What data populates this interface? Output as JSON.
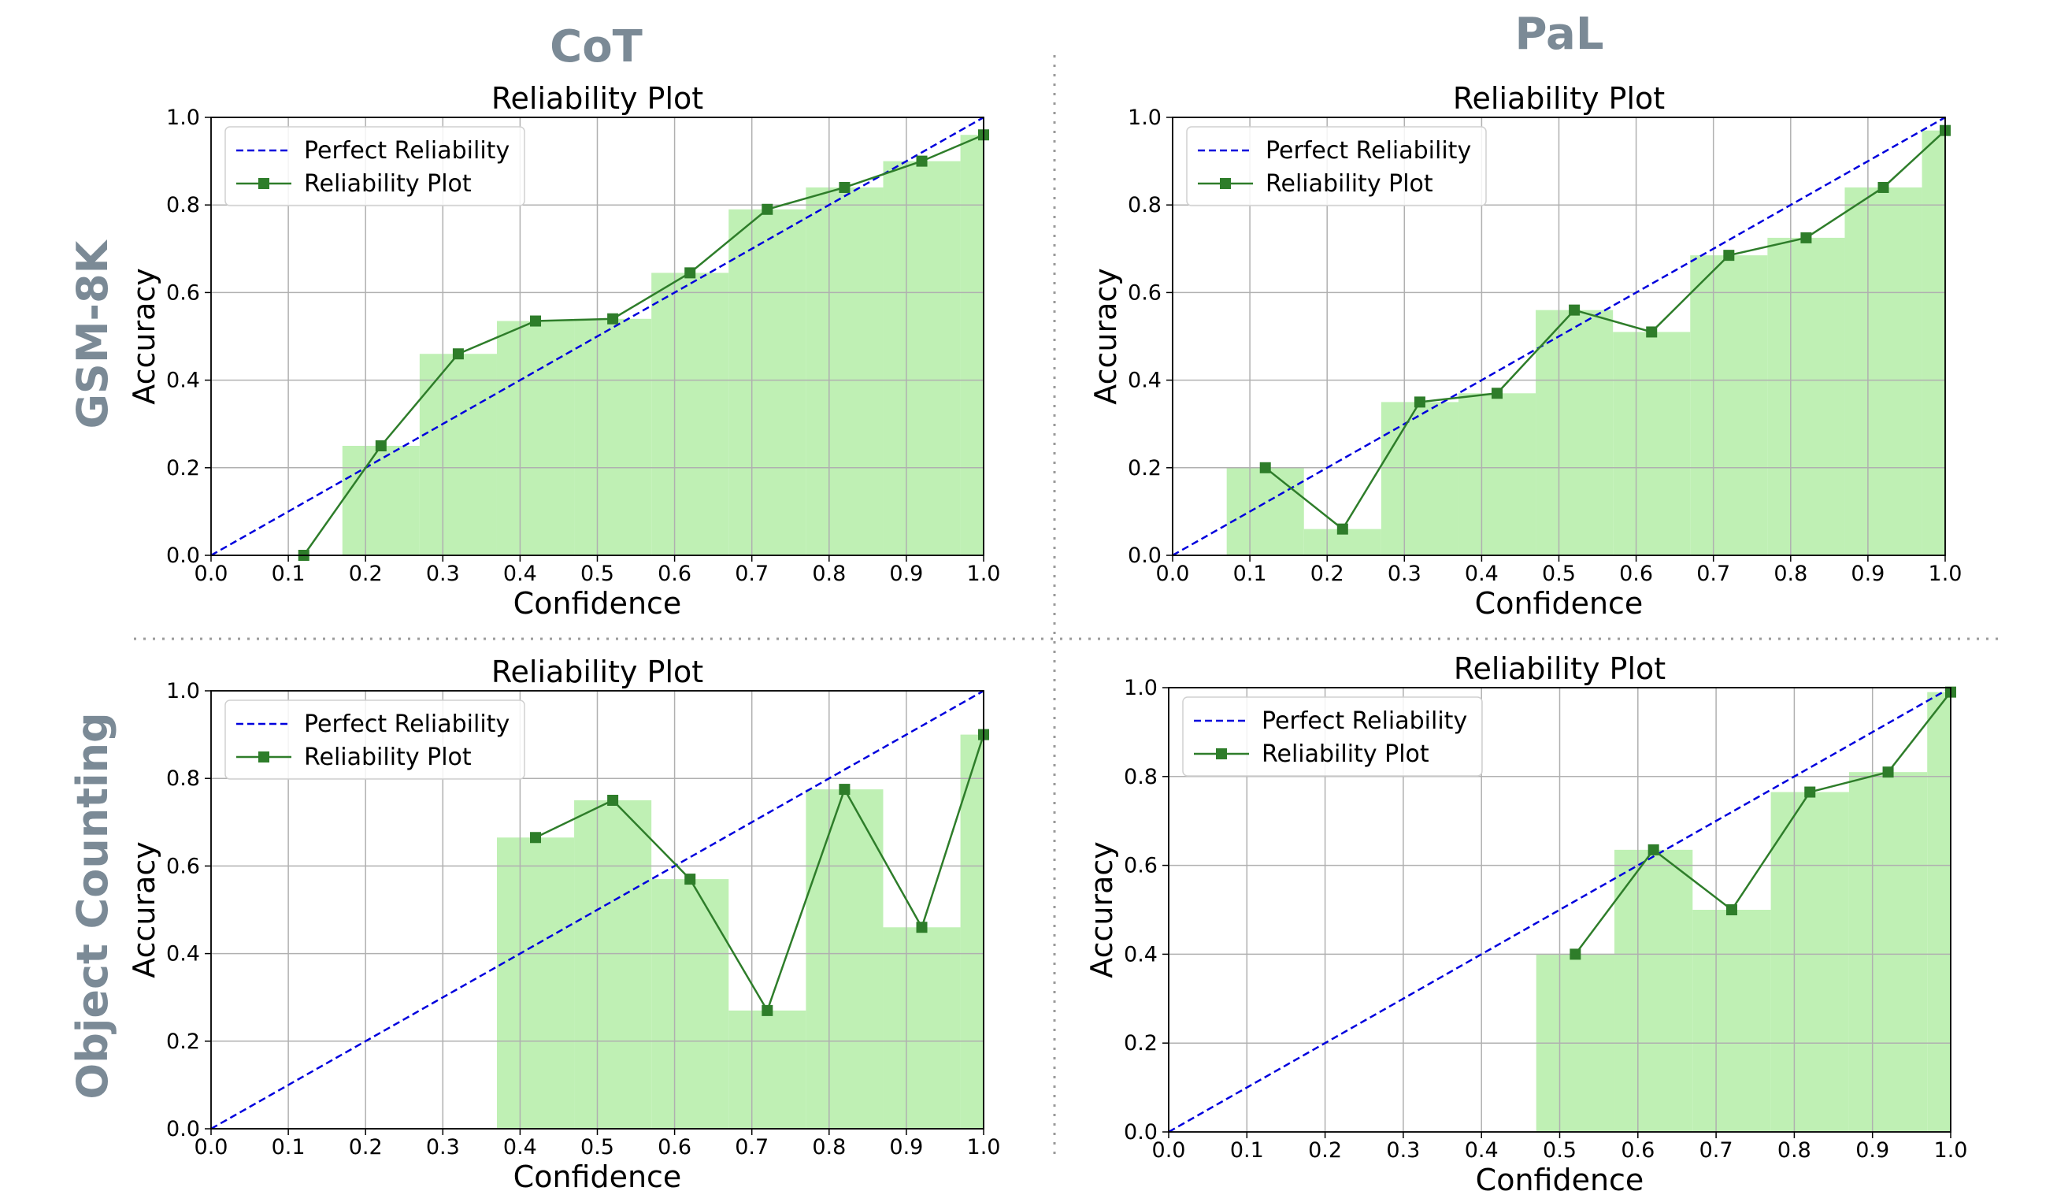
{
  "columns": [
    "CoT",
    "PaL"
  ],
  "rows": [
    "GSM-8K",
    "Object Counting"
  ],
  "colors": {
    "bar": "#bff0b4",
    "line": "#2e7d2a",
    "perfect": "#0000dd",
    "grid": "#b0b0b0",
    "header": "#7b8a96"
  },
  "chart_data": [
    {
      "type": "line",
      "panel": "CoT / GSM-8K",
      "title": "Reliability Plot",
      "xlabel": "Confidence",
      "ylabel": "Accuracy",
      "xlim": [
        0,
        1
      ],
      "ylim": [
        0,
        1
      ],
      "xticks": [
        "0.0",
        "0.1",
        "0.2",
        "0.3",
        "0.4",
        "0.5",
        "0.6",
        "0.7",
        "0.8",
        "0.9",
        "1.0"
      ],
      "yticks": [
        "0.0",
        "0.2",
        "0.4",
        "0.6",
        "0.8",
        "1.0"
      ],
      "grid": true,
      "legend": "top-left",
      "legend_entries": [
        "Perfect Reliability",
        "Reliability Plot"
      ],
      "bars": [
        {
          "x0": 0.17,
          "x1": 0.27,
          "y": 0.25
        },
        {
          "x0": 0.27,
          "x1": 0.37,
          "y": 0.46
        },
        {
          "x0": 0.37,
          "x1": 0.47,
          "y": 0.535
        },
        {
          "x0": 0.47,
          "x1": 0.57,
          "y": 0.54
        },
        {
          "x0": 0.57,
          "x1": 0.67,
          "y": 0.645
        },
        {
          "x0": 0.67,
          "x1": 0.77,
          "y": 0.79
        },
        {
          "x0": 0.77,
          "x1": 0.87,
          "y": 0.84
        },
        {
          "x0": 0.87,
          "x1": 0.97,
          "y": 0.9
        },
        {
          "x0": 0.97,
          "x1": 1.0,
          "y": 0.96
        }
      ],
      "series": [
        {
          "name": "Reliability Plot",
          "x": [
            0.12,
            0.22,
            0.32,
            0.42,
            0.52,
            0.62,
            0.72,
            0.82,
            0.92,
            1.0
          ],
          "y": [
            0.0,
            0.25,
            0.46,
            0.535,
            0.54,
            0.645,
            0.79,
            0.84,
            0.9,
            0.96
          ]
        }
      ]
    },
    {
      "type": "line",
      "panel": "PaL / GSM-8K",
      "title": "Reliability Plot",
      "xlabel": "Confidence",
      "ylabel": "Accuracy",
      "xlim": [
        0,
        1
      ],
      "ylim": [
        0,
        1
      ],
      "xticks": [
        "0.0",
        "0.1",
        "0.2",
        "0.3",
        "0.4",
        "0.5",
        "0.6",
        "0.7",
        "0.8",
        "0.9",
        "1.0"
      ],
      "yticks": [
        "0.0",
        "0.2",
        "0.4",
        "0.6",
        "0.8",
        "1.0"
      ],
      "grid": true,
      "legend": "top-left",
      "legend_entries": [
        "Perfect Reliability",
        "Reliability Plot"
      ],
      "bars": [
        {
          "x0": 0.07,
          "x1": 0.17,
          "y": 0.2
        },
        {
          "x0": 0.17,
          "x1": 0.27,
          "y": 0.06
        },
        {
          "x0": 0.27,
          "x1": 0.37,
          "y": 0.35
        },
        {
          "x0": 0.37,
          "x1": 0.47,
          "y": 0.37
        },
        {
          "x0": 0.47,
          "x1": 0.57,
          "y": 0.56
        },
        {
          "x0": 0.57,
          "x1": 0.67,
          "y": 0.51
        },
        {
          "x0": 0.67,
          "x1": 0.77,
          "y": 0.685
        },
        {
          "x0": 0.77,
          "x1": 0.87,
          "y": 0.725
        },
        {
          "x0": 0.87,
          "x1": 0.97,
          "y": 0.84
        },
        {
          "x0": 0.97,
          "x1": 1.0,
          "y": 0.97
        }
      ],
      "series": [
        {
          "name": "Reliability Plot",
          "x": [
            0.12,
            0.22,
            0.32,
            0.42,
            0.52,
            0.62,
            0.72,
            0.82,
            0.92,
            1.0
          ],
          "y": [
            0.2,
            0.06,
            0.35,
            0.37,
            0.56,
            0.51,
            0.685,
            0.725,
            0.84,
            0.97
          ]
        }
      ]
    },
    {
      "type": "line",
      "panel": "CoT / Object Counting",
      "title": "Reliability Plot",
      "xlabel": "Confidence",
      "ylabel": "Accuracy",
      "xlim": [
        0,
        1
      ],
      "ylim": [
        0,
        1
      ],
      "xticks": [
        "0.0",
        "0.1",
        "0.2",
        "0.3",
        "0.4",
        "0.5",
        "0.6",
        "0.7",
        "0.8",
        "0.9",
        "1.0"
      ],
      "yticks": [
        "0.0",
        "0.2",
        "0.4",
        "0.6",
        "0.8",
        "1.0"
      ],
      "grid": true,
      "legend": "top-left",
      "legend_entries": [
        "Perfect Reliability",
        "Reliability Plot"
      ],
      "bars": [
        {
          "x0": 0.37,
          "x1": 0.47,
          "y": 0.665
        },
        {
          "x0": 0.47,
          "x1": 0.57,
          "y": 0.75
        },
        {
          "x0": 0.57,
          "x1": 0.67,
          "y": 0.57
        },
        {
          "x0": 0.67,
          "x1": 0.77,
          "y": 0.27
        },
        {
          "x0": 0.77,
          "x1": 0.87,
          "y": 0.775
        },
        {
          "x0": 0.87,
          "x1": 0.97,
          "y": 0.46
        },
        {
          "x0": 0.97,
          "x1": 1.0,
          "y": 0.9
        }
      ],
      "series": [
        {
          "name": "Reliability Plot",
          "x": [
            0.42,
            0.52,
            0.62,
            0.72,
            0.82,
            0.92,
            1.0
          ],
          "y": [
            0.665,
            0.75,
            0.57,
            0.27,
            0.775,
            0.46,
            0.9
          ]
        }
      ]
    },
    {
      "type": "line",
      "panel": "PaL / Object Counting",
      "title": "Reliability Plot",
      "xlabel": "Confidence",
      "ylabel": "Accuracy",
      "xlim": [
        0,
        1
      ],
      "ylim": [
        0,
        1
      ],
      "xticks": [
        "0.0",
        "0.1",
        "0.2",
        "0.3",
        "0.4",
        "0.5",
        "0.6",
        "0.7",
        "0.8",
        "0.9",
        "1.0"
      ],
      "yticks": [
        "0.0",
        "0.2",
        "0.4",
        "0.6",
        "0.8",
        "1.0"
      ],
      "grid": true,
      "legend": "top-left",
      "legend_entries": [
        "Perfect Reliability",
        "Reliability Plot"
      ],
      "bars": [
        {
          "x0": 0.47,
          "x1": 0.57,
          "y": 0.4
        },
        {
          "x0": 0.57,
          "x1": 0.67,
          "y": 0.635
        },
        {
          "x0": 0.67,
          "x1": 0.77,
          "y": 0.5
        },
        {
          "x0": 0.77,
          "x1": 0.87,
          "y": 0.765
        },
        {
          "x0": 0.87,
          "x1": 0.97,
          "y": 0.81
        },
        {
          "x0": 0.97,
          "x1": 1.0,
          "y": 0.99
        }
      ],
      "series": [
        {
          "name": "Reliability Plot",
          "x": [
            0.52,
            0.62,
            0.72,
            0.82,
            0.92,
            1.0
          ],
          "y": [
            0.4,
            0.635,
            0.5,
            0.765,
            0.81,
            0.99
          ]
        }
      ]
    }
  ]
}
